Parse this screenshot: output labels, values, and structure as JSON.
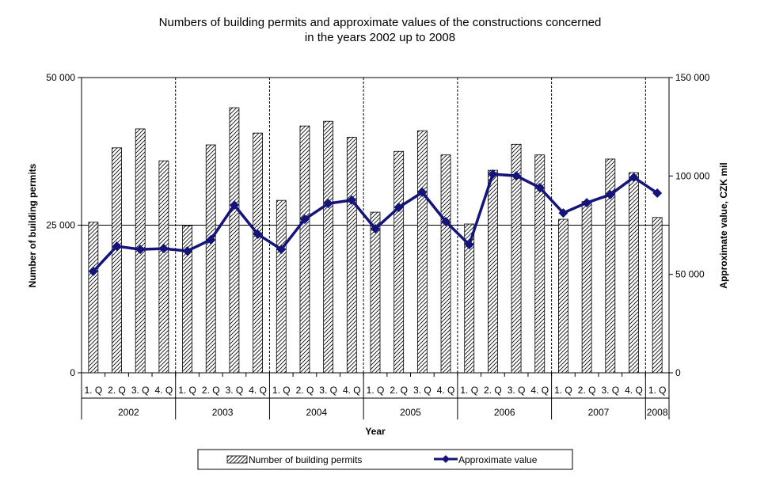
{
  "chart_data": {
    "type": "bar+line",
    "title": "Numbers of building permits and approximate values of the constructions concerned",
    "title_line2": "in  the years 2002 up to 2008",
    "xlabel": "Year",
    "ylabel_left": "Number of building permits",
    "ylabel_right": "Approximate value, CZK mil",
    "ylim_left": [
      0,
      50000
    ],
    "ylim_right": [
      0,
      150000
    ],
    "yticks_left": [
      "0",
      "25 000",
      "50 000"
    ],
    "yticks_right": [
      "0",
      "50 000",
      "100 000",
      "150 000"
    ],
    "quarters": [
      "1. Q",
      "2. Q",
      "3. Q",
      "4. Q",
      "1. Q",
      "2. Q",
      "3. Q",
      "4. Q",
      "1. Q",
      "2. Q",
      "3. Q",
      "4. Q",
      "1. Q",
      "2. Q",
      "3. Q",
      "4. Q",
      "1. Q",
      "2. Q",
      "3. Q",
      "4. Q",
      "1. Q",
      "2. Q",
      "3. Q",
      "4. Q",
      "1. Q"
    ],
    "years": [
      {
        "label": "2002",
        "quarters": 4
      },
      {
        "label": "2003",
        "quarters": 4
      },
      {
        "label": "2004",
        "quarters": 4
      },
      {
        "label": "2005",
        "quarters": 4
      },
      {
        "label": "2006",
        "quarters": 4
      },
      {
        "label": "2007",
        "quarters": 4
      },
      {
        "label": "2008",
        "quarters": 1
      }
    ],
    "grid": "horizontal at 25 000, dashed year separators",
    "legend_position": "bottom",
    "series": [
      {
        "name": "Number of building permits",
        "type": "bar",
        "axis": "left",
        "pattern": "diagonal-hatch",
        "values": [
          25500,
          38100,
          41300,
          35900,
          24900,
          38600,
          44900,
          40600,
          29200,
          41800,
          42600,
          39900,
          27200,
          37500,
          41000,
          36900,
          25200,
          34300,
          38700,
          36900,
          26000,
          29000,
          36200,
          33900,
          26300
        ]
      },
      {
        "name": "Approximate value",
        "type": "line",
        "axis": "right",
        "color": "#14147a",
        "marker": "diamond",
        "values": [
          51500,
          64300,
          62700,
          63100,
          61900,
          67600,
          85200,
          70400,
          62700,
          78000,
          86000,
          87700,
          73200,
          84000,
          91700,
          76800,
          65100,
          100900,
          100100,
          94100,
          81200,
          86400,
          90500,
          99300,
          91300
        ]
      }
    ]
  }
}
